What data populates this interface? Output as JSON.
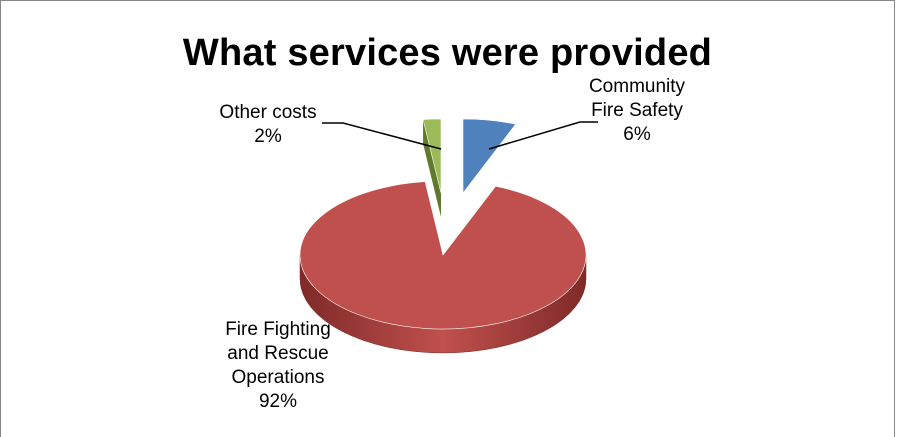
{
  "chart_data": {
    "type": "pie",
    "title": "What services were provided",
    "style": "3d-exploded",
    "slices": [
      {
        "name": "Community Fire Safety",
        "label_lines": [
          "Community",
          "Fire Safety"
        ],
        "value": 6,
        "pct_label": "6%",
        "color": "#4f81bd",
        "side_color": "#395e8b"
      },
      {
        "name": "Fire Fighting and Rescue Operations",
        "label_lines": [
          "Fire Fighting",
          "and Rescue",
          "Operations"
        ],
        "value": 92,
        "pct_label": "92%",
        "color": "#c0504d",
        "side_color": "#7f2a28"
      },
      {
        "name": "Other costs",
        "label_lines": [
          "Other costs"
        ],
        "value": 2,
        "pct_label": "2%",
        "color": "#9bbb59",
        "side_color": "#5f7a2c"
      }
    ]
  }
}
